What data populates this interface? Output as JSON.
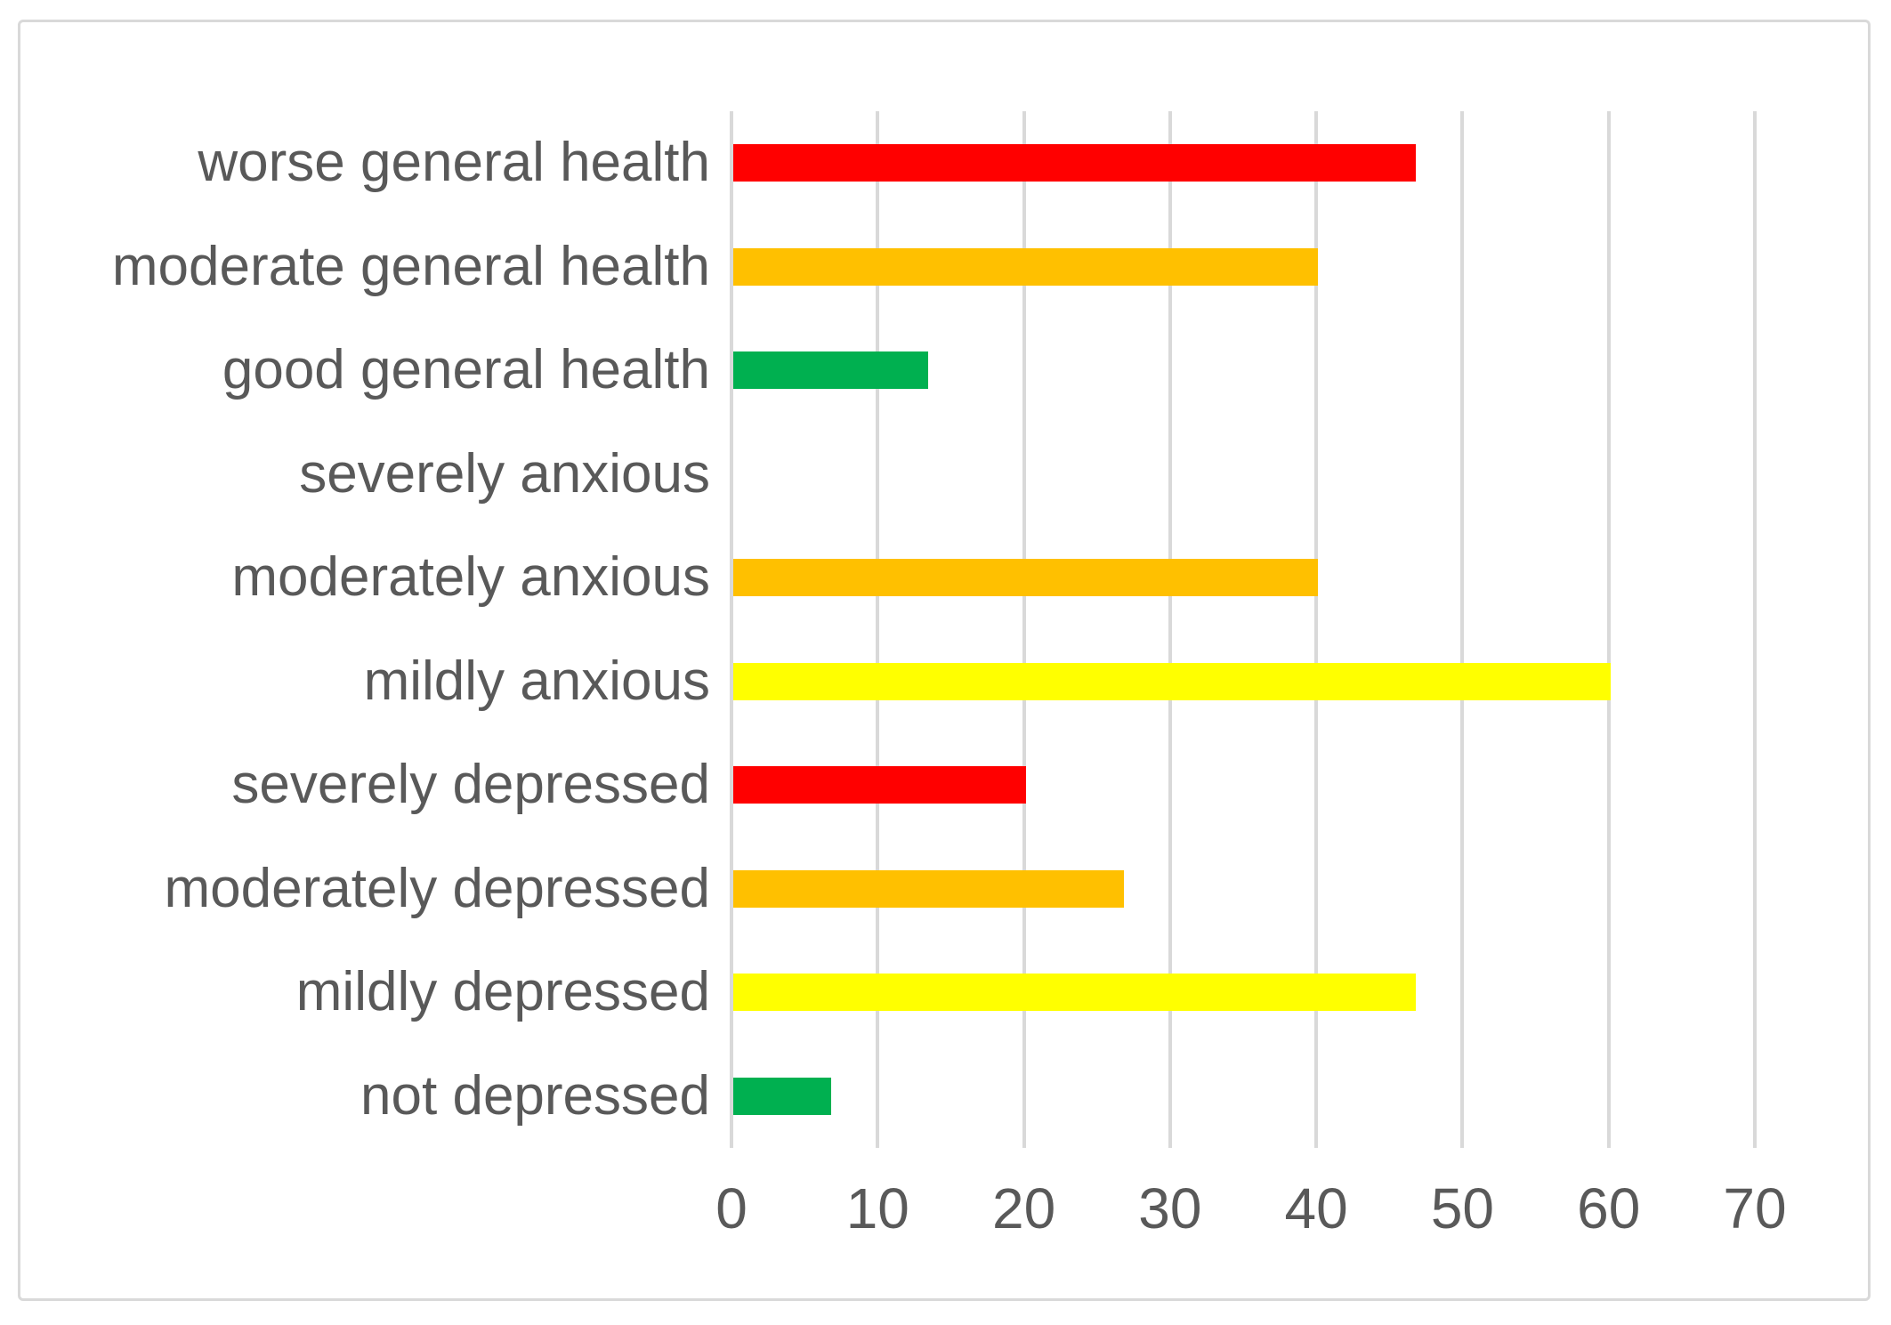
{
  "chart_data": {
    "type": "bar",
    "orientation": "horizontal",
    "title": "",
    "xlabel": "",
    "ylabel": "",
    "categories": [
      "worse general health",
      "moderate general health",
      "good general health",
      "severely anxious",
      "moderately anxious",
      "mildly anxious",
      "severely depressed",
      "moderately depressed",
      "mildly depressed",
      "not depressed"
    ],
    "values": [
      46.7,
      40,
      13.3,
      0,
      40,
      60,
      20,
      26.7,
      46.7,
      6.7
    ],
    "bar_colors": [
      "#FF0000",
      "#FFC000",
      "#00B050",
      null,
      "#FFC000",
      "#FFFF00",
      "#FF0000",
      "#FFC000",
      "#FFFF00",
      "#00B050"
    ],
    "xlim": [
      0,
      70
    ],
    "x_ticks": [
      0,
      10,
      20,
      30,
      40,
      50,
      60,
      70
    ],
    "grid": "vertical-only",
    "legend": "none",
    "colors": {
      "gridline": "#D9D9D9",
      "axis_text": "#595959",
      "chart_border": "#D9D9D9",
      "background": "#FFFFFF",
      "severity_red": "#FF0000",
      "severity_orange": "#FFC000",
      "severity_yellow": "#FFFF00",
      "severity_green": "#00B050"
    }
  }
}
